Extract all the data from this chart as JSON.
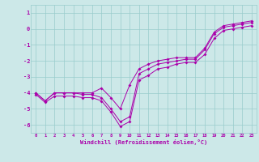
{
  "hours": [
    0,
    1,
    2,
    3,
    4,
    5,
    6,
    7,
    8,
    9,
    10,
    11,
    12,
    13,
    14,
    15,
    16,
    17,
    18,
    19,
    20,
    21,
    22,
    23
  ],
  "line_upper": [
    -4.0,
    -4.5,
    -4.0,
    -4.0,
    -4.0,
    -4.0,
    -4.0,
    -3.7,
    -4.3,
    -5.0,
    -3.5,
    -2.5,
    -2.2,
    -2.0,
    -1.9,
    -1.8,
    -1.8,
    -1.8,
    -1.2,
    -0.2,
    0.2,
    0.3,
    0.4,
    0.5
  ],
  "line_mid": [
    -4.0,
    -4.5,
    -4.0,
    -4.0,
    -4.0,
    -4.1,
    -4.1,
    -4.3,
    -5.0,
    -5.8,
    -5.5,
    -2.8,
    -2.5,
    -2.2,
    -2.1,
    -2.0,
    -1.9,
    -1.9,
    -1.3,
    -0.3,
    0.1,
    0.2,
    0.3,
    0.4
  ],
  "line_lower": [
    -4.1,
    -4.6,
    -4.2,
    -4.2,
    -4.2,
    -4.3,
    -4.3,
    -4.5,
    -5.2,
    -6.1,
    -5.8,
    -3.2,
    -2.9,
    -2.5,
    -2.4,
    -2.2,
    -2.1,
    -2.1,
    -1.6,
    -0.6,
    -0.1,
    0.0,
    0.1,
    0.2
  ],
  "background": "#cce8e8",
  "grid_color": "#99cccc",
  "line_color": "#aa00aa",
  "xlabel": "Windchill (Refroidissement éolien,°C)",
  "ylim": [
    -6.5,
    1.5
  ],
  "yticks": [
    -6,
    -5,
    -4,
    -3,
    -2,
    -1,
    0,
    1
  ],
  "xticks": [
    0,
    1,
    2,
    3,
    4,
    5,
    6,
    7,
    8,
    9,
    10,
    11,
    12,
    13,
    14,
    15,
    16,
    17,
    18,
    19,
    20,
    21,
    22,
    23
  ]
}
